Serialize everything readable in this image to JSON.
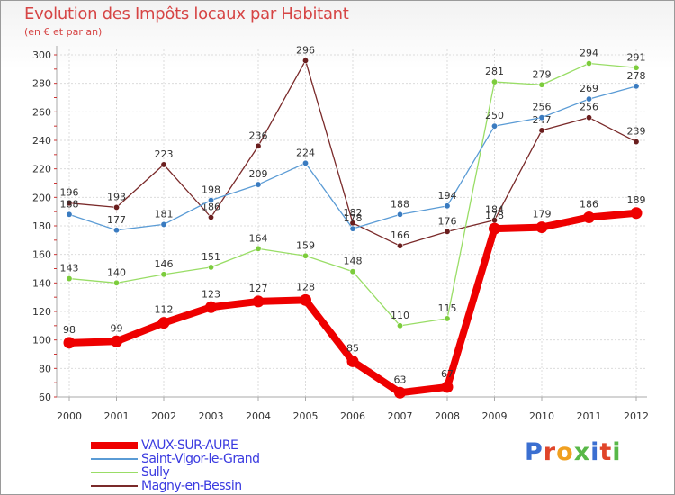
{
  "title": "Evolution des Impôts locaux par Habitant",
  "subtitle": "(en € et par an)",
  "logo": {
    "text": "Proxiti",
    "colors": [
      "#3b6fd1",
      "#e0452a",
      "#f0a020",
      "#58b848",
      "#3b6fd1",
      "#e0452a",
      "#58b848"
    ]
  },
  "chart_data": {
    "type": "line",
    "title": "Evolution des Impôts locaux par Habitant",
    "ylabel": "(en € et par an)",
    "xlabel": "",
    "categories": [
      "2000",
      "2001",
      "2002",
      "2003",
      "2004",
      "2005",
      "2006",
      "2007",
      "2008",
      "2009",
      "2010",
      "2011",
      "2012"
    ],
    "ylim": [
      60,
      300
    ],
    "yticks": [
      60,
      80,
      100,
      120,
      140,
      160,
      180,
      200,
      220,
      240,
      260,
      280,
      300
    ],
    "legend_position": "bottom-left",
    "series": [
      {
        "name": "VAUX-SUR-AURE",
        "color": "#ee0000",
        "values": [
          98,
          99,
          112,
          123,
          127,
          128,
          85,
          63,
          67,
          178,
          179,
          186,
          189
        ],
        "labels": [
          "98",
          "99",
          "112",
          "123",
          "127",
          "128",
          "85",
          "63",
          "67",
          "178",
          "179",
          "186",
          "189"
        ]
      },
      {
        "name": "Saint-Vigor-le-Grand",
        "color": "#5a9bd5",
        "dot": "#3a7bc0",
        "values": [
          188,
          177,
          181,
          198,
          209,
          224,
          178,
          188,
          194,
          250,
          256,
          269,
          278
        ],
        "labels": [
          "188",
          "177",
          "181",
          "198",
          "209",
          "224",
          "178",
          "188",
          "194",
          "250",
          "256",
          "269",
          "278"
        ]
      },
      {
        "name": "Sully",
        "color": "#99dd66",
        "dot": "#7ccc3c",
        "values": [
          143,
          140,
          146,
          151,
          164,
          159,
          148,
          110,
          115,
          281,
          279,
          294,
          291
        ],
        "labels": [
          "143",
          "140",
          "146",
          "151",
          "164",
          "159",
          "148",
          "110",
          "115",
          "281",
          "279",
          "294",
          "291"
        ]
      },
      {
        "name": "Magny-en-Bessin",
        "color": "#7a2a2a",
        "dot": "#6a1e1e",
        "values": [
          196,
          193,
          223,
          186,
          236,
          296,
          182,
          166,
          176,
          184,
          247,
          256,
          239
        ],
        "labels": [
          "196",
          "193",
          "223",
          "186",
          "236",
          "296",
          "182",
          "166",
          "176",
          "184",
          "247",
          "256",
          "239"
        ]
      }
    ]
  }
}
